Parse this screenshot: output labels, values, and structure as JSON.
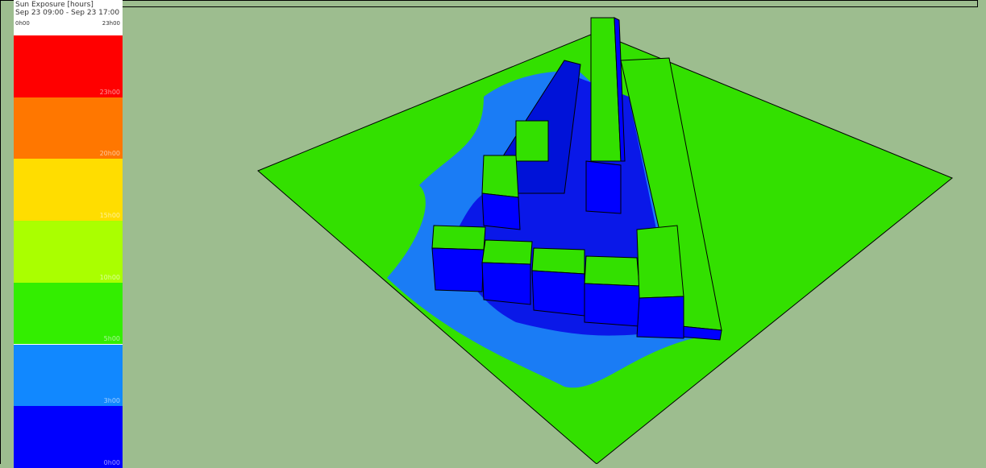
{
  "legend": {
    "title": "Sun Exposure [hours]",
    "subtitle": "Sep 23 09:00 - Sep 23 17:00",
    "range_start": "0h00",
    "range_end": "23h00",
    "bands": [
      {
        "label": "23h00",
        "color": "#ff0000"
      },
      {
        "label": "20h00",
        "color": "#ff7700"
      },
      {
        "label": "15h00",
        "color": "#ffdd00"
      },
      {
        "label": "10h00",
        "color": "#aaff00"
      },
      {
        "label": "5h00",
        "color": "#33ee00"
      },
      {
        "label": "3h00",
        "color": "#1188ff"
      },
      {
        "label": "0h00",
        "color": "#0000ff"
      }
    ]
  }
}
